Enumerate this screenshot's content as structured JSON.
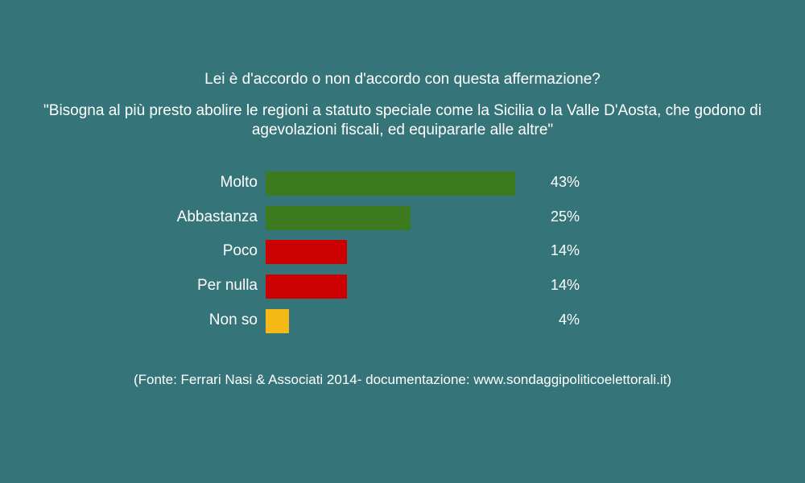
{
  "chart_data": {
    "type": "bar",
    "orientation": "horizontal",
    "title": "Lei è d'accordo o non d'accordo con questa affermazione?",
    "subtitle": "\"Bisogna al più presto abolire le regioni a statuto speciale come la Sicilia o la Valle D'Aosta, che godono di agevolazioni fiscali, ed equipararle alle altre\"",
    "categories": [
      "Molto",
      "Abbastanza",
      "Poco",
      "Per nulla",
      "Non so"
    ],
    "values": [
      43,
      25,
      14,
      14,
      4
    ],
    "value_labels": [
      "43%",
      "25%",
      "14%",
      "14%",
      "4%"
    ],
    "colors": [
      "#3b7a1e",
      "#3b7a1e",
      "#cc0000",
      "#cc0000",
      "#f5b917"
    ],
    "xlim": [
      0,
      43
    ],
    "grid": false,
    "source": "(Fonte: Ferrari Nasi & Associati 2014- documentazione: www.sondaggipoliticoelettorali.it)"
  }
}
